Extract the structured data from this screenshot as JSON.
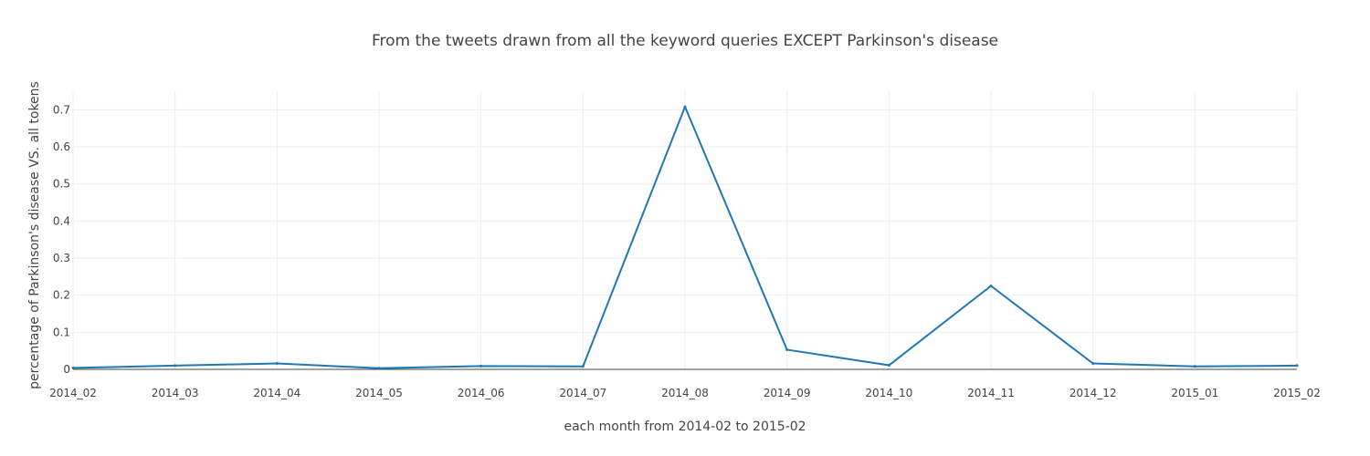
{
  "chart_data": {
    "type": "line",
    "title": "From the tweets drawn from all the keyword queries EXCEPT Parkinson's disease",
    "xlabel": "each month from 2014-02 to 2015-02",
    "ylabel": "percentage of Parkinson's disease VS. all tokens",
    "categories": [
      "2014_02",
      "2014_03",
      "2014_04",
      "2014_05",
      "2014_06",
      "2014_07",
      "2014_08",
      "2014_09",
      "2014_10",
      "2014_11",
      "2014_12",
      "2015_01",
      "2015_02"
    ],
    "series": [
      {
        "values": [
          0.004,
          0.01,
          0.016,
          0.003,
          0.009,
          0.008,
          0.708,
          0.053,
          0.011,
          0.225,
          0.016,
          0.008,
          0.01
        ],
        "color": "#1f77b4"
      }
    ],
    "ylim": [
      0,
      0.75
    ],
    "yticks": [
      0,
      0.1,
      0.2,
      0.3,
      0.4,
      0.5,
      0.6,
      0.7
    ],
    "grid": true,
    "legend": "none"
  }
}
